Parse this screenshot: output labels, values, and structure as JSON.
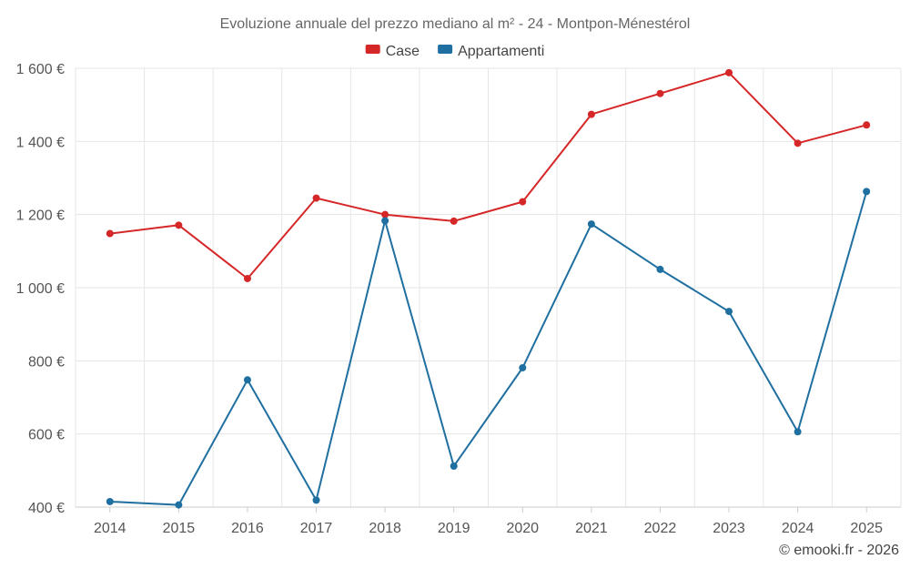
{
  "chart_data": {
    "type": "line",
    "title": "Evoluzione annuale del prezzo mediano al m² - 24 - Montpon-Ménestérol",
    "xlabel": "",
    "ylabel": "",
    "categories": [
      "2014",
      "2015",
      "2016",
      "2017",
      "2018",
      "2019",
      "2020",
      "2021",
      "2022",
      "2023",
      "2024",
      "2025"
    ],
    "ylim": [
      400,
      1600
    ],
    "yticks": [
      400,
      600,
      800,
      1000,
      1200,
      1400,
      1600
    ],
    "ytick_labels": [
      "400 €",
      "600 €",
      "800 €",
      "1 000 €",
      "1 200 €",
      "1 400 €",
      "1 600 €"
    ],
    "grid": true,
    "legend_position": "top-center",
    "series": [
      {
        "name": "Case",
        "color": "#d62728",
        "values": [
          1148,
          1171,
          1025,
          1245,
          1200,
          1182,
          1235,
          1474,
          1531,
          1588,
          1395,
          1445
        ]
      },
      {
        "name": "Appartamenti",
        "color": "#1f6fa0",
        "values": [
          415,
          406,
          748,
          419,
          1183,
          512,
          781,
          1174,
          1050,
          935,
          606,
          1263
        ]
      }
    ]
  },
  "credit": "© emooki.fr - 2026"
}
